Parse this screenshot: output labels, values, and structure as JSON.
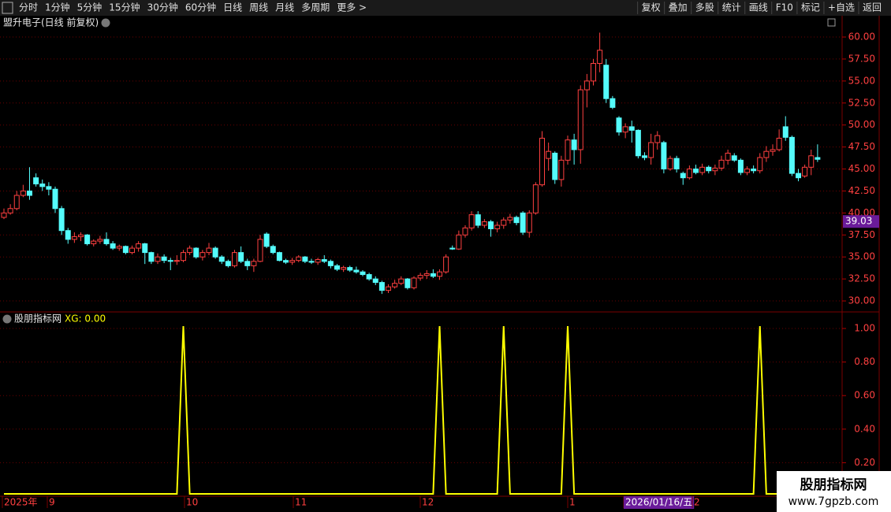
{
  "toolbar": {
    "left": [
      "分时",
      "1分钟",
      "5分钟",
      "15分钟",
      "30分钟",
      "60分钟",
      "日线",
      "周线",
      "月线",
      "多周期",
      "更多 >"
    ],
    "active_index": 6,
    "right": [
      "复权",
      "叠加",
      "多股",
      "统计",
      "画线",
      "F10",
      "标记",
      "+自选",
      "返回"
    ]
  },
  "chart_data": [
    {
      "type": "candlestick",
      "title": "盟升电子(日线 前复权)",
      "up_color": "#ff4040",
      "down_color": "#54fcfc",
      "grid": true,
      "ylim": [
        28.84,
        62.24
      ],
      "yticks": [
        {
          "value": 30,
          "label": "30.00"
        },
        {
          "value": 32.5,
          "label": "32.50"
        },
        {
          "value": 35,
          "label": "35.00"
        },
        {
          "value": 37.5,
          "label": "37.50"
        },
        {
          "value": 40,
          "label": "40.00"
        },
        {
          "value": 42.5,
          "label": "42.50"
        },
        {
          "value": 45,
          "label": "45.00"
        },
        {
          "value": 47.5,
          "label": "47.50"
        },
        {
          "value": 50,
          "label": "50.00"
        },
        {
          "value": 52.5,
          "label": "52.50"
        },
        {
          "value": 55,
          "label": "55.00"
        },
        {
          "value": 57.5,
          "label": "57.50"
        },
        {
          "value": 60,
          "label": "60.00"
        }
      ],
      "cursor_value": 39.03,
      "ohlc": [
        [
          39.5,
          40.5,
          39.3,
          40
        ],
        [
          40,
          41,
          39.8,
          40.5
        ],
        [
          40.5,
          42.5,
          40.3,
          42
        ],
        [
          42,
          43.2,
          41.8,
          42.5
        ],
        [
          42.5,
          45.2,
          41.5,
          42
        ],
        [
          44,
          44.5,
          43,
          43.3
        ],
        [
          43.3,
          43.8,
          42.5,
          43
        ],
        [
          43,
          43.5,
          42,
          42.7
        ],
        [
          42.7,
          43,
          40,
          40.5
        ],
        [
          40.5,
          40.8,
          37.5,
          38
        ],
        [
          38,
          38.3,
          36.5,
          37
        ],
        [
          37,
          37.8,
          36.6,
          37.3
        ],
        [
          37.3,
          37.8,
          36.8,
          37.5
        ],
        [
          37.5,
          37.6,
          36.3,
          36.5
        ],
        [
          36.5,
          37,
          36.2,
          36.8
        ],
        [
          36.8,
          37.4,
          36.5,
          37
        ],
        [
          37,
          37.8,
          36.3,
          36.5
        ],
        [
          36.5,
          36.8,
          35.8,
          36
        ],
        [
          36,
          36.4,
          35.7,
          36.2
        ],
        [
          36.2,
          36.3,
          35.3,
          35.5
        ],
        [
          35.5,
          36.3,
          35.3,
          36
        ],
        [
          36,
          36.8,
          35.6,
          36.5
        ],
        [
          36.5,
          36.6,
          34.2,
          35.5
        ],
        [
          35.5,
          35.6,
          34.2,
          34.5
        ],
        [
          34.5,
          35.4,
          34.2,
          35
        ],
        [
          35,
          35.3,
          34.3,
          34.6
        ],
        [
          34.6,
          34.9,
          33.5,
          34.5
        ],
        [
          34.5,
          35.2,
          34.1,
          34.6
        ],
        [
          34.6,
          35.8,
          34.4,
          35.5
        ],
        [
          35.5,
          36.3,
          35.2,
          36
        ],
        [
          36,
          36.1,
          34.8,
          35
        ],
        [
          35,
          35.8,
          34.6,
          35.5
        ],
        [
          35.5,
          36.6,
          35.2,
          36
        ],
        [
          36,
          36.2,
          34.8,
          35
        ],
        [
          35,
          35.2,
          34.2,
          34.5
        ],
        [
          34.5,
          34.7,
          33.8,
          34
        ],
        [
          34,
          35.8,
          33.8,
          35.5
        ],
        [
          35.5,
          36.2,
          34.3,
          34.5
        ],
        [
          34.5,
          34.8,
          33.5,
          34
        ],
        [
          34,
          34.8,
          33.3,
          34.5
        ],
        [
          34.5,
          37.5,
          34.4,
          37
        ],
        [
          37.6,
          37.8,
          36,
          36.2
        ],
        [
          36.2,
          36.4,
          35.3,
          35.5
        ],
        [
          35.5,
          35.6,
          34.5,
          34.6
        ],
        [
          34.6,
          34.8,
          34.2,
          34.4
        ],
        [
          34.4,
          34.9,
          34.1,
          34.6
        ],
        [
          34.6,
          35.2,
          34.4,
          35
        ],
        [
          35,
          35.1,
          34.3,
          34.5
        ],
        [
          34.5,
          34.8,
          34.2,
          34.4
        ],
        [
          34.4,
          34.9,
          34.1,
          34.7
        ],
        [
          34.7,
          35.2,
          34.3,
          34.5
        ],
        [
          34.5,
          34.7,
          33.7,
          34
        ],
        [
          34,
          34.2,
          33.4,
          33.6
        ],
        [
          33.6,
          34,
          33.3,
          33.8
        ],
        [
          33.8,
          34,
          33.3,
          33.5
        ],
        [
          33.5,
          33.9,
          33.1,
          33.3
        ],
        [
          33.3,
          33.5,
          32.8,
          33
        ],
        [
          33,
          33.2,
          32.3,
          32.5
        ],
        [
          32.5,
          32.8,
          31.8,
          32.1
        ],
        [
          32.1,
          32.3,
          30.8,
          31.2
        ],
        [
          31.2,
          31.9,
          30.9,
          31.6
        ],
        [
          31.6,
          32.4,
          31.4,
          32
        ],
        [
          32,
          32.8,
          31.8,
          32.5
        ],
        [
          32.5,
          32.6,
          31.3,
          31.5
        ],
        [
          31.5,
          32.8,
          31.3,
          32.6
        ],
        [
          32.6,
          33.2,
          32.3,
          32.9
        ],
        [
          32.9,
          33.5,
          32.5,
          33.1
        ],
        [
          33.1,
          33.6,
          32.6,
          32.8
        ],
        [
          32.8,
          33.6,
          32.4,
          33.3
        ],
        [
          33.3,
          35.3,
          33.1,
          35
        ],
        [
          36,
          36.3,
          35.8,
          35.9
        ],
        [
          35.9,
          38,
          35.8,
          37.5
        ],
        [
          37.5,
          38.6,
          37.2,
          38.3
        ],
        [
          38.3,
          40.2,
          38,
          39.8
        ],
        [
          39.8,
          40.2,
          38.3,
          38.6
        ],
        [
          38.6,
          39.3,
          38.3,
          39
        ],
        [
          39,
          39.2,
          37.3,
          38.2
        ],
        [
          38.2,
          39,
          37.8,
          38.6
        ],
        [
          38.6,
          39.5,
          38.2,
          39.2
        ],
        [
          39.2,
          39.9,
          38.8,
          39.5
        ],
        [
          39.5,
          39.7,
          38.6,
          38.9
        ],
        [
          40,
          40.2,
          37.5,
          37.8
        ],
        [
          37.8,
          40.3,
          37.2,
          40
        ],
        [
          40,
          43.5,
          39.8,
          43.2
        ],
        [
          43.2,
          49.3,
          43,
          48.5
        ],
        [
          46.2,
          48,
          44.8,
          47
        ],
        [
          46.8,
          47,
          43.3,
          43.8
        ],
        [
          43.8,
          46.5,
          43,
          46
        ],
        [
          46,
          48.8,
          45.5,
          48.3
        ],
        [
          48.3,
          49,
          45.5,
          47.2
        ],
        [
          47.2,
          54.5,
          45.6,
          54
        ],
        [
          54,
          55.8,
          52,
          55
        ],
        [
          55,
          57.5,
          54.5,
          57
        ],
        [
          57,
          60.5,
          56,
          58.5
        ],
        [
          56.8,
          57.5,
          52.5,
          53
        ],
        [
          53,
          53.3,
          51.8,
          52
        ],
        [
          50.8,
          51,
          48.8,
          49.2
        ],
        [
          49.2,
          50.2,
          48.5,
          49.8
        ],
        [
          49.8,
          50.5,
          48,
          49.4
        ],
        [
          49.4,
          49.5,
          46.2,
          46.5
        ],
        [
          46.5,
          46.9,
          46,
          46.3
        ],
        [
          46.3,
          49,
          45.5,
          48
        ],
        [
          48,
          49.3,
          47.2,
          48.8
        ],
        [
          48,
          48.2,
          44.5,
          45
        ],
        [
          45,
          46.5,
          44.8,
          46.2
        ],
        [
          46.2,
          46.5,
          44.6,
          45
        ],
        [
          44.5,
          44.7,
          43.2,
          44
        ],
        [
          44,
          45.4,
          43.8,
          45
        ],
        [
          45,
          45.5,
          44.4,
          44.6
        ],
        [
          44.6,
          45.6,
          44.3,
          45.2
        ],
        [
          45.2,
          45.4,
          44.5,
          44.8
        ],
        [
          44.8,
          45.5,
          44.3,
          45.1
        ],
        [
          45.1,
          46.5,
          44.8,
          46
        ],
        [
          46,
          47.2,
          45.5,
          46.8
        ],
        [
          46.5,
          46.8,
          45.8,
          46
        ],
        [
          46,
          46.2,
          44.3,
          44.6
        ],
        [
          44.6,
          45.3,
          44.3,
          45
        ],
        [
          45,
          45.4,
          44.5,
          44.8
        ],
        [
          44.8,
          46.8,
          44.5,
          46.3
        ],
        [
          46.3,
          47.6,
          45.8,
          47
        ],
        [
          47,
          47.8,
          46.5,
          47.2
        ],
        [
          47.2,
          49.5,
          47,
          48.5
        ],
        [
          49.8,
          51,
          48.2,
          48.6
        ],
        [
          48.6,
          48.8,
          44.2,
          44.5
        ],
        [
          44.5,
          45,
          43.6,
          44
        ],
        [
          44.2,
          45.5,
          44,
          45.2
        ],
        [
          45.2,
          47.2,
          44.3,
          46.5
        ],
        [
          46.3,
          47.8,
          45.8,
          46.1
        ]
      ]
    },
    {
      "type": "line",
      "title": "股朋指标网",
      "subtitle": "XG: 0.00",
      "color": "#ffff00",
      "grid": true,
      "ylim": [
        0,
        1.094
      ],
      "yticks": [
        {
          "value": 0.2,
          "label": "0.20"
        },
        {
          "value": 0.4,
          "label": "0.40"
        },
        {
          "value": 0.6,
          "label": "0.60"
        },
        {
          "value": 0.8,
          "label": "0.80"
        },
        {
          "value": 1,
          "label": "1.00"
        }
      ],
      "values": [
        0,
        0,
        0,
        0,
        0,
        0,
        0,
        0,
        0,
        0,
        0,
        0,
        0,
        0,
        0,
        0,
        0,
        0,
        0,
        0,
        0,
        0,
        0,
        0,
        0,
        0,
        0,
        0,
        1,
        0,
        0,
        0,
        0,
        0,
        0,
        0,
        0,
        0,
        0,
        0,
        0,
        0,
        0,
        0,
        0,
        0,
        0,
        0,
        0,
        0,
        0,
        0,
        0,
        0,
        0,
        0,
        0,
        0,
        0,
        0,
        0,
        0,
        0,
        0,
        0,
        0,
        0,
        0,
        1,
        0,
        0,
        0,
        0,
        0,
        0,
        0,
        0,
        0,
        1,
        0,
        0,
        0,
        0,
        0,
        0,
        0,
        0,
        0,
        1,
        0,
        0,
        0,
        0,
        0,
        0,
        0,
        0,
        0,
        0,
        0,
        0,
        0,
        0,
        0,
        0,
        0,
        0,
        0,
        0,
        0,
        0,
        0,
        0,
        0,
        0,
        0,
        0,
        0,
        1,
        0,
        0,
        0,
        0,
        0,
        0,
        0,
        0,
        0
      ]
    }
  ],
  "x_axis_labels": [
    "2025年",
    "9",
    "10",
    "11",
    "12",
    "1",
    "2026/01/16/五",
    "2"
  ],
  "x_axis_highlight": 6,
  "watermark": {
    "name": "股朋指标网",
    "url": "www.7gpzb.com"
  }
}
